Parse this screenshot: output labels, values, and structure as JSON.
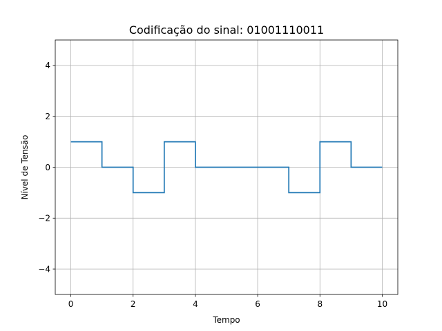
{
  "chart_data": {
    "type": "line",
    "step": "post",
    "title": "Codificação do sinal: 01001110011",
    "xlabel": "Tempo",
    "ylabel": "Nível de Tensão",
    "xlim": [
      -0.5,
      10.5
    ],
    "ylim": [
      -5,
      5
    ],
    "grid": true,
    "xticks": [
      0,
      2,
      4,
      6,
      8,
      10
    ],
    "yticks": [
      -4,
      -2,
      0,
      2,
      4
    ],
    "x": [
      0,
      1,
      2,
      3,
      4,
      5,
      6,
      7,
      8,
      9,
      10
    ],
    "series": [
      {
        "color": "#1f77b4",
        "values": [
          1,
          0,
          -1,
          1,
          0,
          0,
          0,
          -1,
          1,
          0,
          0
        ]
      }
    ]
  }
}
